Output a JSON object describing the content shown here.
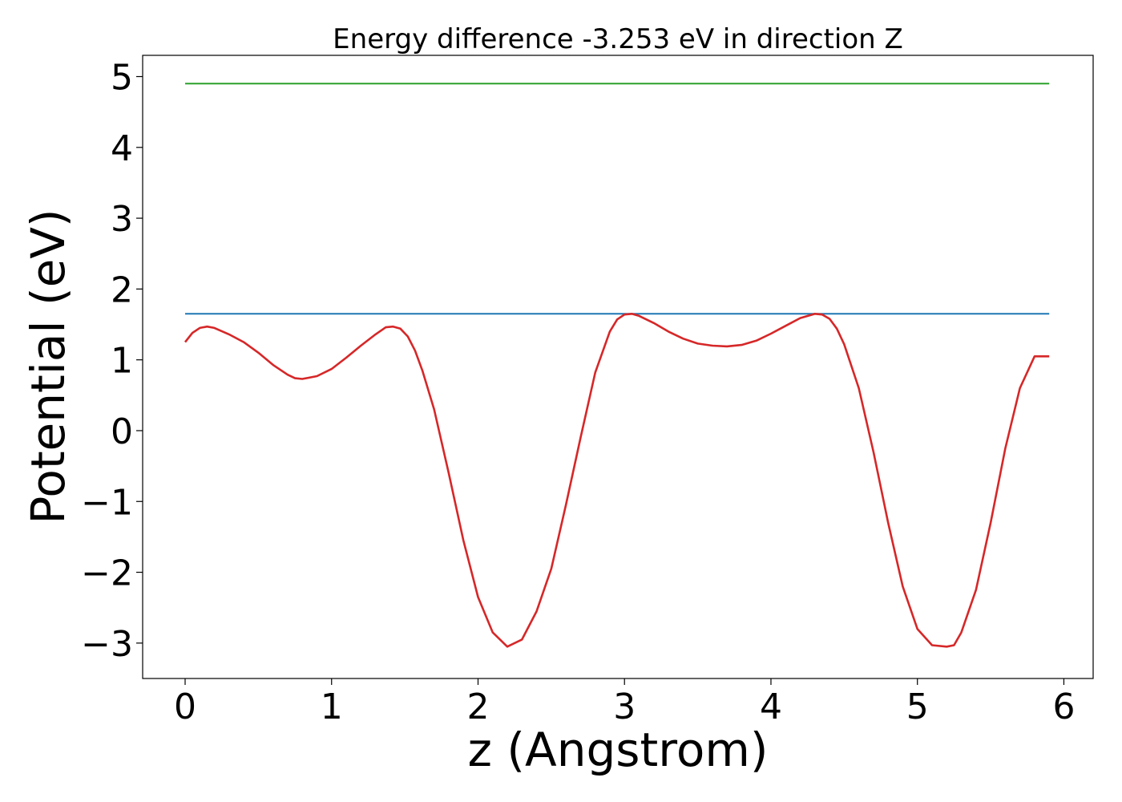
{
  "chart_data": {
    "type": "line",
    "title": "Energy difference -3.253 eV in direction Z",
    "xlabel": "z (Angstrom)",
    "ylabel": "Potential (eV)",
    "xlim": [
      -0.29,
      6.2
    ],
    "ylim": [
      -3.5,
      5.3
    ],
    "xticks": [
      0,
      1,
      2,
      3,
      4,
      5,
      6
    ],
    "xtick_labels": [
      "0",
      "1",
      "2",
      "3",
      "4",
      "5",
      "6"
    ],
    "yticks": [
      5,
      4,
      3,
      2,
      1,
      0,
      -1,
      -2,
      -3
    ],
    "ytick_labels": [
      "5",
      "4",
      "3",
      "2",
      "1",
      "0",
      "−1",
      "−2",
      "−3"
    ],
    "grid": false,
    "series": [
      {
        "color": "#2ca02c",
        "x": [
          0,
          5.9
        ],
        "y": [
          4.9,
          4.9
        ]
      },
      {
        "color": "#1f77b4",
        "x": [
          0,
          5.9
        ],
        "y": [
          1.65,
          1.65
        ]
      },
      {
        "color": "#d62728",
        "x": [
          0,
          0.05,
          0.1,
          0.15,
          0.2,
          0.3,
          0.4,
          0.5,
          0.6,
          0.7,
          0.75,
          0.8,
          0.9,
          1.0,
          1.1,
          1.2,
          1.3,
          1.37,
          1.42,
          1.47,
          1.52,
          1.57,
          1.62,
          1.7,
          1.8,
          1.9,
          2.0,
          2.1,
          2.2,
          2.3,
          2.4,
          2.5,
          2.6,
          2.7,
          2.8,
          2.9,
          2.95,
          3.0,
          3.05,
          3.1,
          3.2,
          3.3,
          3.4,
          3.5,
          3.6,
          3.7,
          3.8,
          3.9,
          4.0,
          4.1,
          4.2,
          4.3,
          4.35,
          4.4,
          4.45,
          4.5,
          4.6,
          4.7,
          4.8,
          4.9,
          5.0,
          5.1,
          5.2,
          5.25,
          5.3,
          5.4,
          5.5,
          5.6,
          5.7,
          5.8,
          5.9
        ],
        "y": [
          1.25,
          1.38,
          1.45,
          1.47,
          1.45,
          1.36,
          1.25,
          1.1,
          0.93,
          0.79,
          0.74,
          0.73,
          0.77,
          0.87,
          1.03,
          1.2,
          1.36,
          1.46,
          1.47,
          1.44,
          1.33,
          1.13,
          0.85,
          0.3,
          -0.6,
          -1.55,
          -2.35,
          -2.85,
          -3.05,
          -2.95,
          -2.55,
          -1.95,
          -1.05,
          -0.1,
          0.82,
          1.4,
          1.57,
          1.64,
          1.65,
          1.62,
          1.52,
          1.4,
          1.3,
          1.23,
          1.2,
          1.19,
          1.21,
          1.27,
          1.37,
          1.48,
          1.59,
          1.65,
          1.64,
          1.58,
          1.44,
          1.22,
          0.6,
          -0.3,
          -1.3,
          -2.2,
          -2.8,
          -3.03,
          -3.05,
          -3.03,
          -2.85,
          -2.25,
          -1.3,
          -0.25,
          0.6,
          1.05,
          1.05
        ]
      }
    ]
  }
}
